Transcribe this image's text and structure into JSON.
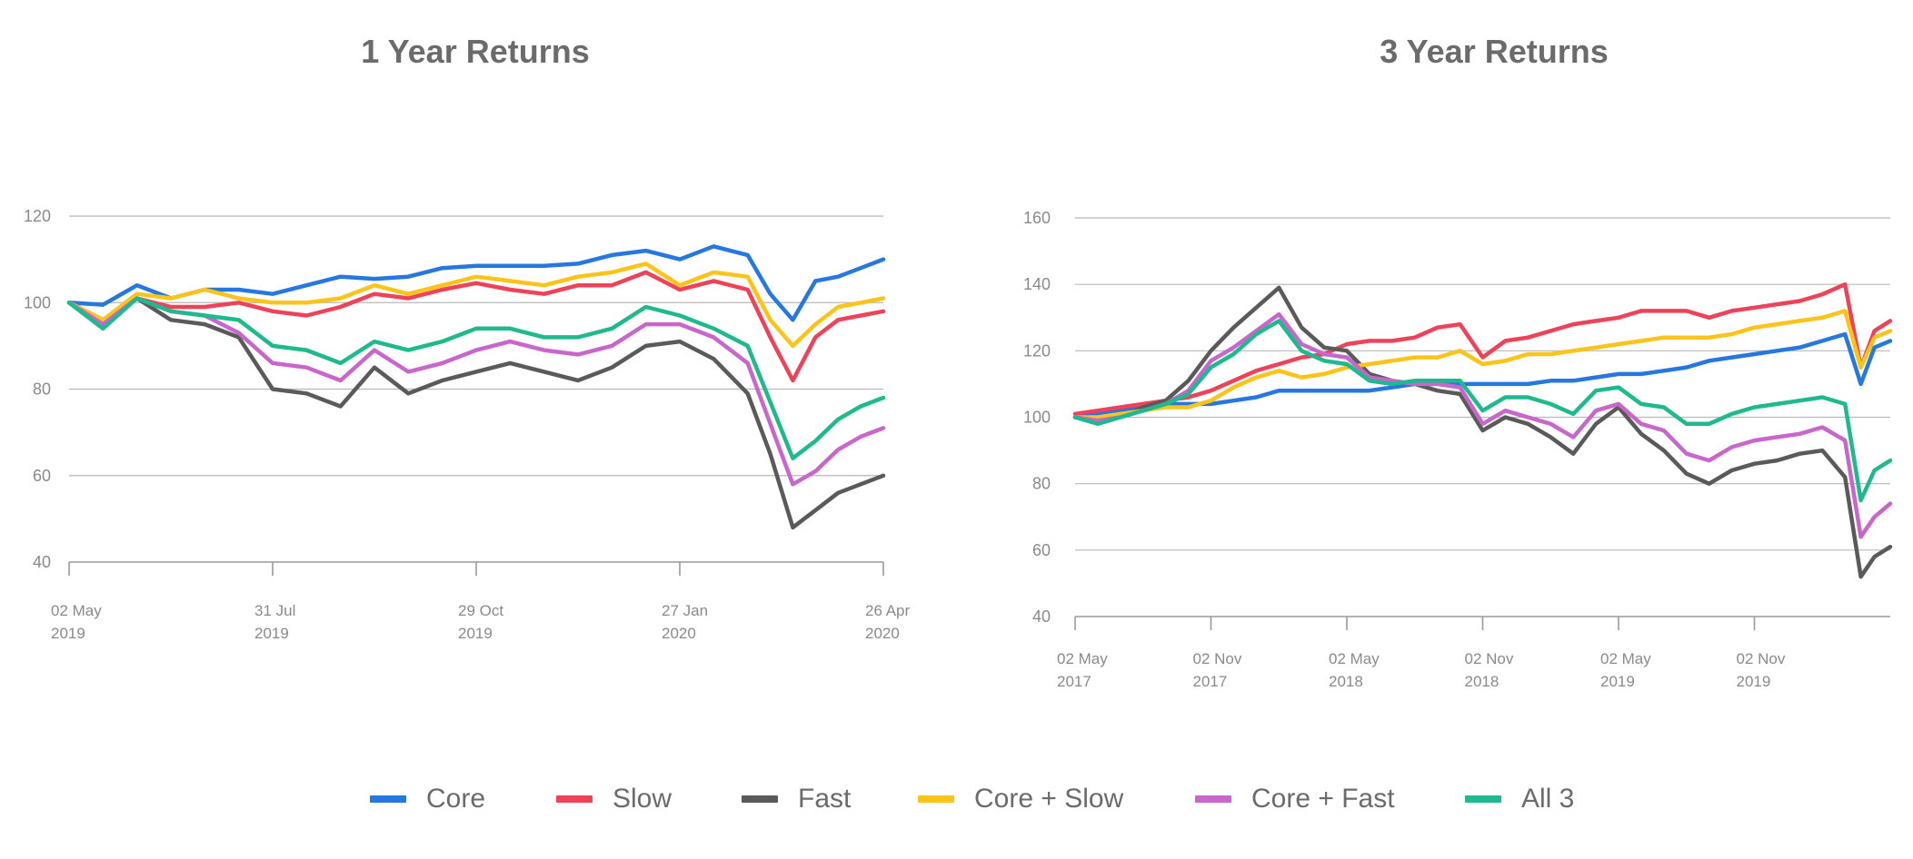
{
  "chart_data": [
    {
      "type": "line",
      "title": "1 Year Returns",
      "xlabel": "",
      "ylabel": "",
      "ylim": [
        40,
        120
      ],
      "yticks": [
        40,
        60,
        80,
        100,
        120
      ],
      "xlim": [
        0,
        360
      ],
      "xticks": [
        {
          "pos": 0,
          "line1": "02 May",
          "line2": "2019"
        },
        {
          "pos": 90,
          "line1": "31 Jul",
          "line2": "2019"
        },
        {
          "pos": 180,
          "line1": "29 Oct",
          "line2": "2019"
        },
        {
          "pos": 270,
          "line1": "27 Jan",
          "line2": "2020"
        },
        {
          "pos": 360,
          "line1": "26 Apr",
          "line2": "2020"
        }
      ],
      "x": [
        0,
        15,
        30,
        45,
        60,
        75,
        90,
        105,
        120,
        135,
        150,
        165,
        180,
        195,
        210,
        225,
        240,
        255,
        270,
        285,
        300,
        310,
        320,
        330,
        340,
        350,
        360
      ],
      "series": [
        {
          "name": "Core",
          "color": "#2677e0",
          "values": [
            100,
            99.5,
            104,
            101,
            103,
            103,
            102,
            104,
            106,
            105.5,
            106,
            108,
            108.5,
            108.5,
            108.5,
            109,
            111,
            112,
            110,
            113,
            111,
            102,
            96,
            105,
            106,
            108,
            110
          ]
        },
        {
          "name": "Slow",
          "color": "#ef4259",
          "values": [
            100,
            96,
            101,
            99,
            99,
            100,
            98,
            97,
            99,
            102,
            101,
            103,
            104.5,
            103,
            102,
            104,
            104,
            107,
            103,
            105,
            103,
            92,
            82,
            92,
            96,
            97,
            98
          ]
        },
        {
          "name": "Fast",
          "color": "#5a5a5a",
          "values": [
            100,
            95,
            101,
            96,
            95,
            92,
            80,
            79,
            76,
            85,
            79,
            82,
            84,
            86,
            84,
            82,
            85,
            90,
            91,
            87,
            79,
            65,
            48,
            52,
            56,
            58,
            60
          ]
        },
        {
          "name": "Core + Slow",
          "color": "#fcc419",
          "values": [
            100,
            96,
            102,
            101,
            103,
            101,
            100,
            100,
            101,
            104,
            102,
            104,
            106,
            105,
            104,
            106,
            107,
            109,
            104,
            107,
            106,
            96,
            90,
            95,
            99,
            100,
            101
          ]
        },
        {
          "name": "Core + Fast",
          "color": "#c966cc",
          "values": [
            100,
            95,
            101,
            98,
            97,
            93,
            86,
            85,
            82,
            89,
            84,
            86,
            89,
            91,
            89,
            88,
            90,
            95,
            95,
            92,
            86,
            72,
            58,
            61,
            66,
            69,
            71
          ]
        },
        {
          "name": "All 3",
          "color": "#1fb98e",
          "values": [
            100,
            94,
            101,
            98,
            97,
            96,
            90,
            89,
            86,
            91,
            89,
            91,
            94,
            94,
            92,
            92,
            94,
            99,
            97,
            94,
            90,
            77,
            64,
            68,
            73,
            76,
            78
          ]
        }
      ]
    },
    {
      "type": "line",
      "title": "3 Year Returns",
      "xlabel": "",
      "ylabel": "",
      "ylim": [
        40,
        160
      ],
      "yticks": [
        40,
        60,
        80,
        100,
        120,
        140,
        160
      ],
      "xlim": [
        0,
        36
      ],
      "xticks": [
        {
          "pos": 0,
          "line1": "02 May",
          "line2": "2017"
        },
        {
          "pos": 6,
          "line1": "02 Nov",
          "line2": "2017"
        },
        {
          "pos": 12,
          "line1": "02 May",
          "line2": "2018"
        },
        {
          "pos": 18,
          "line1": "02 Nov",
          "line2": "2018"
        },
        {
          "pos": 24,
          "line1": "02 May",
          "line2": "2019"
        },
        {
          "pos": 30,
          "line1": "02 Nov",
          "line2": "2019"
        }
      ],
      "x": [
        0,
        1,
        2,
        3,
        4,
        5,
        6,
        7,
        8,
        9,
        10,
        11,
        12,
        13,
        14,
        15,
        16,
        17,
        18,
        19,
        20,
        21,
        22,
        23,
        24,
        25,
        26,
        27,
        28,
        29,
        30,
        31,
        32,
        33,
        34,
        34.7,
        35.3,
        36
      ],
      "series": [
        {
          "name": "Core",
          "color": "#2677e0",
          "values": [
            100,
            101,
            102,
            103,
            104,
            104,
            104,
            105,
            106,
            108,
            108,
            108,
            108,
            108,
            109,
            110,
            110,
            110,
            110,
            110,
            110,
            111,
            111,
            112,
            113,
            113,
            114,
            115,
            117,
            118,
            119,
            120,
            121,
            123,
            125,
            110,
            121,
            123
          ]
        },
        {
          "name": "Slow",
          "color": "#ef4259",
          "values": [
            101,
            102,
            103,
            104,
            105,
            106,
            108,
            111,
            114,
            116,
            118,
            119,
            122,
            123,
            123,
            124,
            127,
            128,
            118,
            123,
            124,
            126,
            128,
            129,
            130,
            132,
            132,
            132,
            130,
            132,
            133,
            134,
            135,
            137,
            140,
            115,
            126,
            129
          ]
        },
        {
          "name": "Fast",
          "color": "#5a5a5a",
          "values": [
            100,
            99,
            100,
            103,
            105,
            111,
            120,
            127,
            133,
            139,
            127,
            121,
            120,
            113,
            111,
            110,
            108,
            107,
            96,
            100,
            98,
            94,
            89,
            98,
            103,
            95,
            90,
            83,
            80,
            84,
            86,
            87,
            89,
            90,
            82,
            52,
            58,
            61
          ]
        },
        {
          "name": "Core + Slow",
          "color": "#fcc419",
          "values": [
            100,
            100,
            101,
            102,
            103,
            103,
            105,
            109,
            112,
            114,
            112,
            113,
            115,
            116,
            117,
            118,
            118,
            120,
            116,
            117,
            119,
            119,
            120,
            121,
            122,
            123,
            124,
            124,
            124,
            125,
            127,
            128,
            129,
            130,
            132,
            115,
            124,
            126
          ]
        },
        {
          "name": "Core + Fast",
          "color": "#c966cc",
          "values": [
            100,
            99,
            100,
            102,
            104,
            108,
            117,
            121,
            126,
            131,
            122,
            119,
            118,
            112,
            111,
            110,
            110,
            109,
            98,
            102,
            100,
            98,
            94,
            102,
            104,
            98,
            96,
            89,
            87,
            91,
            93,
            94,
            95,
            97,
            93,
            64,
            70,
            74
          ]
        },
        {
          "name": "All 3",
          "color": "#1fb98e",
          "values": [
            100,
            98,
            100,
            102,
            104,
            107,
            115,
            119,
            125,
            129,
            120,
            117,
            116,
            111,
            110,
            111,
            111,
            111,
            102,
            106,
            106,
            104,
            101,
            108,
            109,
            104,
            103,
            98,
            98,
            101,
            103,
            104,
            105,
            106,
            104,
            75,
            84,
            87
          ]
        }
      ]
    }
  ],
  "legend": {
    "items": [
      {
        "label": "Core",
        "color": "#2677e0"
      },
      {
        "label": "Slow",
        "color": "#ef4259"
      },
      {
        "label": "Fast",
        "color": "#5a5a5a"
      },
      {
        "label": "Core + Slow",
        "color": "#fcc419"
      },
      {
        "label": "Core + Fast",
        "color": "#c966cc"
      },
      {
        "label": "All 3",
        "color": "#1fb98e"
      }
    ]
  }
}
